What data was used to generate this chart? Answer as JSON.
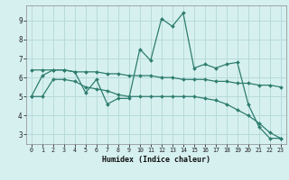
{
  "xlabel": "Humidex (Indice chaleur)",
  "background_color": "#d6f0f0",
  "grid_color": "#b8dada",
  "line_color": "#2e7d6e",
  "xlim": [
    -0.5,
    23.5
  ],
  "ylim": [
    2.5,
    9.8
  ],
  "xticks": [
    0,
    1,
    2,
    3,
    4,
    5,
    6,
    7,
    8,
    9,
    10,
    11,
    12,
    13,
    14,
    15,
    16,
    17,
    18,
    19,
    20,
    21,
    22,
    23
  ],
  "yticks": [
    3,
    4,
    5,
    6,
    7,
    8,
    9
  ],
  "series": [
    [
      5.0,
      6.1,
      6.4,
      6.4,
      6.3,
      5.2,
      5.9,
      4.6,
      4.9,
      4.9,
      7.5,
      6.9,
      9.1,
      8.7,
      9.4,
      6.5,
      6.7,
      6.5,
      6.7,
      6.8,
      4.6,
      3.4,
      2.8,
      2.8
    ],
    [
      6.4,
      6.4,
      6.4,
      6.4,
      6.3,
      6.3,
      6.3,
      6.2,
      6.2,
      6.1,
      6.1,
      6.1,
      6.0,
      6.0,
      5.9,
      5.9,
      5.9,
      5.8,
      5.8,
      5.7,
      5.7,
      5.6,
      5.6,
      5.5
    ],
    [
      5.0,
      5.0,
      5.9,
      5.9,
      5.8,
      5.5,
      5.4,
      5.3,
      5.1,
      5.0,
      5.0,
      5.0,
      5.0,
      5.0,
      5.0,
      5.0,
      4.9,
      4.8,
      4.6,
      4.3,
      4.0,
      3.6,
      3.1,
      2.8
    ]
  ]
}
